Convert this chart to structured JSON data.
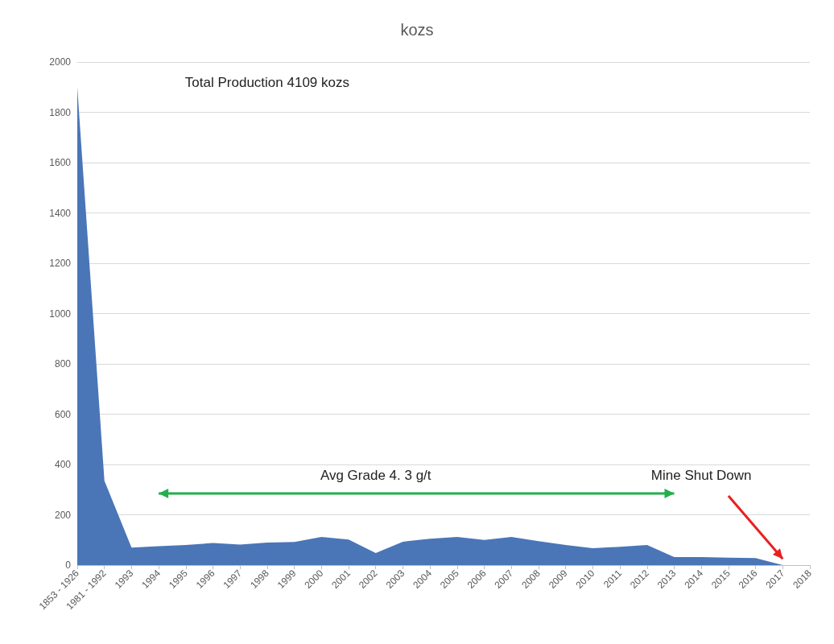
{
  "chart_data": {
    "type": "area",
    "title": "kozs",
    "categories": [
      "1853 - 1926",
      "1981 - 1992",
      "1993",
      "1994",
      "1995",
      "1996",
      "1997",
      "1998",
      "1999",
      "2000",
      "2001",
      "2002",
      "2003",
      "2004",
      "2005",
      "2006",
      "2007",
      "2008",
      "2009",
      "2010",
      "2011",
      "2012",
      "2013",
      "2014",
      "2015",
      "2016",
      "2017",
      "2018"
    ],
    "series": [
      {
        "color": "#4a76b8",
        "values": [
          1900,
          335,
          70,
          75,
          80,
          88,
          82,
          90,
          92,
          112,
          102,
          48,
          93,
          105,
          112,
          100,
          112,
          95,
          80,
          67,
          73,
          80,
          32,
          32,
          30,
          28,
          0,
          null
        ]
      }
    ],
    "ylim": [
      0,
      2000
    ],
    "yticks": [
      0,
      200,
      400,
      600,
      800,
      1000,
      1200,
      1400,
      1600,
      1800,
      2000
    ],
    "grid": "y",
    "annotations": [
      "Total Production 4109 kozs",
      "Avg Grade 4. 3 g/t",
      "Mine Shut Down"
    ]
  }
}
